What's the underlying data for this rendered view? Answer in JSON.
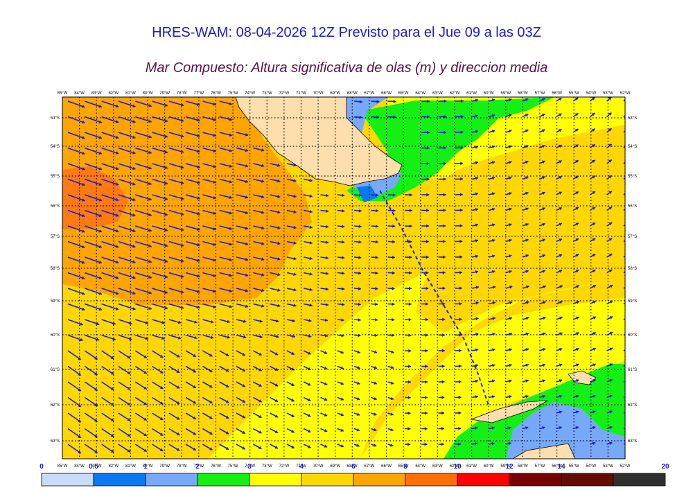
{
  "title": "HRES-WAM: 08-04-2026 12Z Previsto para el Jue 09 a las 03Z",
  "subtitle": "Mar Compuesto: Altura significativa de olas (m) y direccion media",
  "map": {
    "lon_labels": [
      "85°W",
      "84°W",
      "83°W",
      "82°W",
      "81°W",
      "80°W",
      "79°W",
      "78°W",
      "77°W",
      "76°W",
      "75°W",
      "74°W",
      "73°W",
      "72°W",
      "71°W",
      "70°W",
      "69°W",
      "68°W",
      "67°W",
      "66°W",
      "65°W",
      "64°W",
      "63°W",
      "62°W",
      "61°W",
      "60°W",
      "59°W",
      "58°W",
      "57°W",
      "56°W",
      "55°W",
      "54°W",
      "53°W",
      "52°W"
    ],
    "lat_labels": [
      "53°S",
      "54°S",
      "55°S",
      "56°S",
      "57°S",
      "58°S",
      "59°S",
      "60°S",
      "61°S",
      "62°S",
      "63°S"
    ]
  },
  "colorbar": {
    "labels": [
      "0",
      "0.5",
      "1",
      "2",
      "3",
      "4",
      "6",
      "8",
      "10",
      "12",
      "14",
      "20"
    ],
    "colors": [
      "#c8dcf8",
      "#0a78f0",
      "#78a8f8",
      "#14f014",
      "#ffff00",
      "#ffd700",
      "#ffa500",
      "#ff7000",
      "#ff0000",
      "#780000",
      "#640a00",
      "#303030"
    ]
  },
  "colors": {
    "land": "#ffdead",
    "arrow": "#1a1ad6",
    "title1": "#1a1ad6",
    "title2": "#5a1050"
  }
}
